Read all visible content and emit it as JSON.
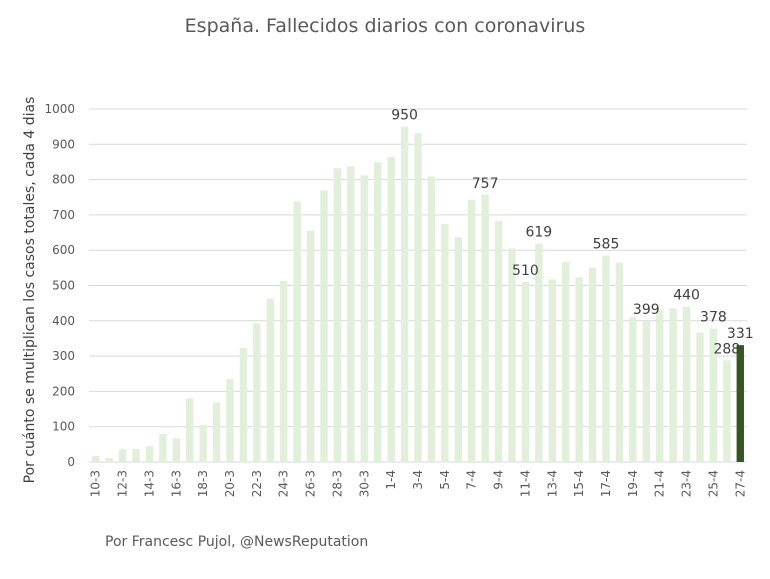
{
  "page": {
    "title": "España. Fallecidos diarios con coronavirus",
    "footer": "Por Francesc Pujol, @NewsReputation"
  },
  "colors": {
    "bar": "#e2efda",
    "highlight": "#375623",
    "grid": "#d9d9d9",
    "text": "#595959"
  },
  "chart_data": {
    "type": "bar",
    "title": "España. Fallecidos diarios con coronavirus",
    "xlabel": "",
    "ylabel": "Por cuánto se multiplican los casos totales, cada 4 dias",
    "ylim": [
      0,
      1000
    ],
    "yticks": [
      0,
      100,
      200,
      300,
      400,
      500,
      600,
      700,
      800,
      900,
      1000
    ],
    "grid": true,
    "legend": "none",
    "categories": [
      "10-3",
      "11-3",
      "12-3",
      "13-3",
      "14-3",
      "15-3",
      "16-3",
      "17-3",
      "18-3",
      "19-3",
      "20-3",
      "21-3",
      "22-3",
      "23-3",
      "24-3",
      "25-3",
      "26-3",
      "27-3",
      "28-3",
      "29-3",
      "30-3",
      "31-3",
      "1-4",
      "2-4",
      "3-4",
      "4-4",
      "5-4",
      "6-4",
      "7-4",
      "8-4",
      "9-4",
      "10-4",
      "11-4",
      "12-4",
      "13-4",
      "14-4",
      "15-4",
      "16-4",
      "17-4",
      "18-4",
      "19-4",
      "20-4",
      "21-4",
      "22-4",
      "23-4",
      "24-4",
      "25-4",
      "26-4",
      "27-4"
    ],
    "tick_labels": [
      "10-3",
      "",
      "12-3",
      "",
      "14-3",
      "",
      "16-3",
      "",
      "18-3",
      "",
      "20-3",
      "",
      "22-3",
      "",
      "24-3",
      "",
      "26-3",
      "",
      "28-3",
      "",
      "30-3",
      "",
      "1-4",
      "",
      "3-4",
      "",
      "5-4",
      "",
      "7-4",
      "",
      "9-4",
      "",
      "11-4",
      "",
      "13-4",
      "",
      "15-4",
      "",
      "17-4",
      "",
      "19-4",
      "",
      "21-4",
      "",
      "23-4",
      "",
      "25-4",
      "",
      "27-4"
    ],
    "values": [
      17,
      11,
      36,
      37,
      45,
      80,
      67,
      180,
      105,
      168,
      235,
      323,
      393,
      462,
      513,
      738,
      655,
      769,
      832,
      838,
      812,
      849,
      864,
      950,
      932,
      809,
      674,
      637,
      743,
      757,
      683,
      605,
      510,
      619,
      517,
      567,
      523,
      551,
      585,
      565,
      410,
      399,
      430,
      435,
      440,
      367,
      378,
      288,
      331
    ],
    "highlight_index": 48,
    "data_labels": [
      {
        "index": 23,
        "text": "950"
      },
      {
        "index": 29,
        "text": "757"
      },
      {
        "index": 32,
        "text": "510"
      },
      {
        "index": 33,
        "text": "619"
      },
      {
        "index": 38,
        "text": "585"
      },
      {
        "index": 41,
        "text": "399"
      },
      {
        "index": 44,
        "text": "440"
      },
      {
        "index": 46,
        "text": "378"
      },
      {
        "index": 47,
        "text": "288"
      },
      {
        "index": 48,
        "text": "331"
      }
    ]
  }
}
